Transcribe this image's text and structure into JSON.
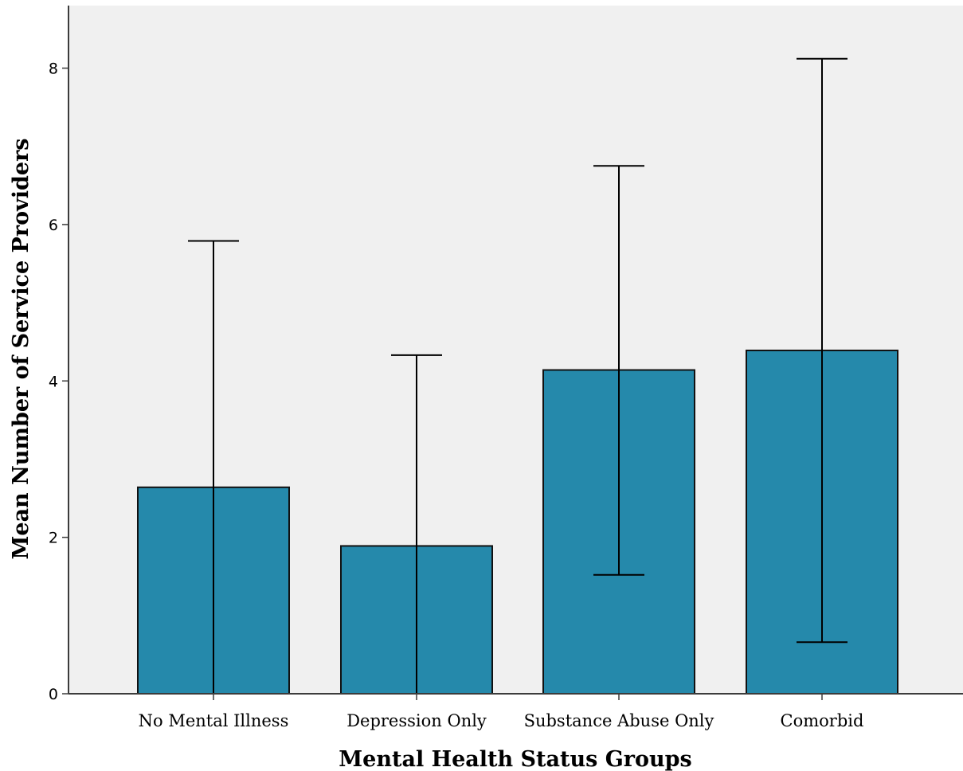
{
  "colors": {
    "bar_fill": "#2589ab",
    "plot_background": "#f0f0f0",
    "axis": "#3c3c3c",
    "error_bar": "#000000"
  },
  "chart_data": {
    "type": "bar",
    "title": "",
    "xlabel": "Mental Health Status Groups",
    "ylabel": "Mean Number of Service Providers",
    "categories": [
      "No Mental Illness",
      "Depression Only",
      "Substance Abuse Only",
      "Comorbid"
    ],
    "values": [
      2.64,
      1.89,
      4.14,
      4.39
    ],
    "error_bars": {
      "lower": [
        0,
        0,
        1.52,
        0.66
      ],
      "upper": [
        5.79,
        4.33,
        6.75,
        8.12
      ]
    },
    "ylim": [
      0,
      8.8
    ],
    "yticks": [
      0,
      2,
      4,
      6,
      8
    ],
    "grid": false,
    "legend": "none"
  }
}
